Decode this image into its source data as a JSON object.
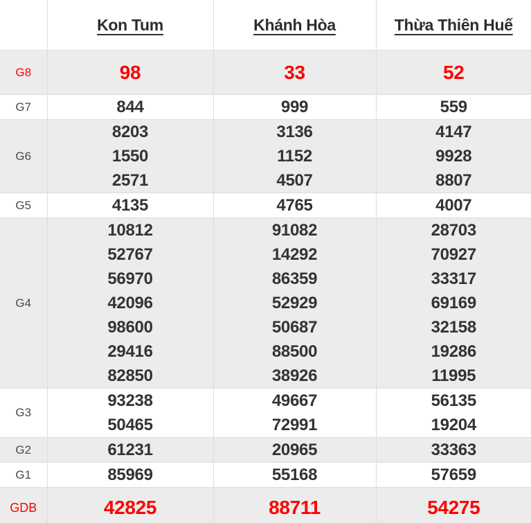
{
  "colors": {
    "emphasis_red": "#ff0000",
    "value_dark": "#333333",
    "label_gray": "#4a4a4a",
    "shaded_row_bg": "#ececec",
    "border": "#dddddd"
  },
  "table": {
    "columns": [
      {
        "label": "Kon Tum"
      },
      {
        "label": "Khánh Hòa"
      },
      {
        "label": "Thừa Thiên Huế"
      }
    ],
    "rows": [
      {
        "label": "G8",
        "emphasis": true,
        "values": [
          [
            "98"
          ],
          [
            "33"
          ],
          [
            "52"
          ]
        ]
      },
      {
        "label": "G7",
        "emphasis": false,
        "values": [
          [
            "844"
          ],
          [
            "999"
          ],
          [
            "559"
          ]
        ]
      },
      {
        "label": "G6",
        "emphasis": false,
        "values": [
          [
            "8203",
            "1550",
            "2571"
          ],
          [
            "3136",
            "1152",
            "4507"
          ],
          [
            "4147",
            "9928",
            "8807"
          ]
        ]
      },
      {
        "label": "G5",
        "emphasis": false,
        "values": [
          [
            "4135"
          ],
          [
            "4765"
          ],
          [
            "4007"
          ]
        ]
      },
      {
        "label": "G4",
        "emphasis": false,
        "values": [
          [
            "10812",
            "52767",
            "56970",
            "42096",
            "98600",
            "29416",
            "82850"
          ],
          [
            "91082",
            "14292",
            "86359",
            "52929",
            "50687",
            "88500",
            "38926"
          ],
          [
            "28703",
            "70927",
            "33317",
            "69169",
            "32158",
            "19286",
            "11995"
          ]
        ]
      },
      {
        "label": "G3",
        "emphasis": false,
        "values": [
          [
            "93238",
            "50465"
          ],
          [
            "49667",
            "72991"
          ],
          [
            "56135",
            "19204"
          ]
        ]
      },
      {
        "label": "G2",
        "emphasis": false,
        "values": [
          [
            "61231"
          ],
          [
            "20965"
          ],
          [
            "33363"
          ]
        ]
      },
      {
        "label": "G1",
        "emphasis": false,
        "values": [
          [
            "85969"
          ],
          [
            "55168"
          ],
          [
            "57659"
          ]
        ]
      },
      {
        "label": "GDB",
        "emphasis": true,
        "values": [
          [
            "42825"
          ],
          [
            "88711"
          ],
          [
            "54275"
          ]
        ]
      }
    ]
  }
}
